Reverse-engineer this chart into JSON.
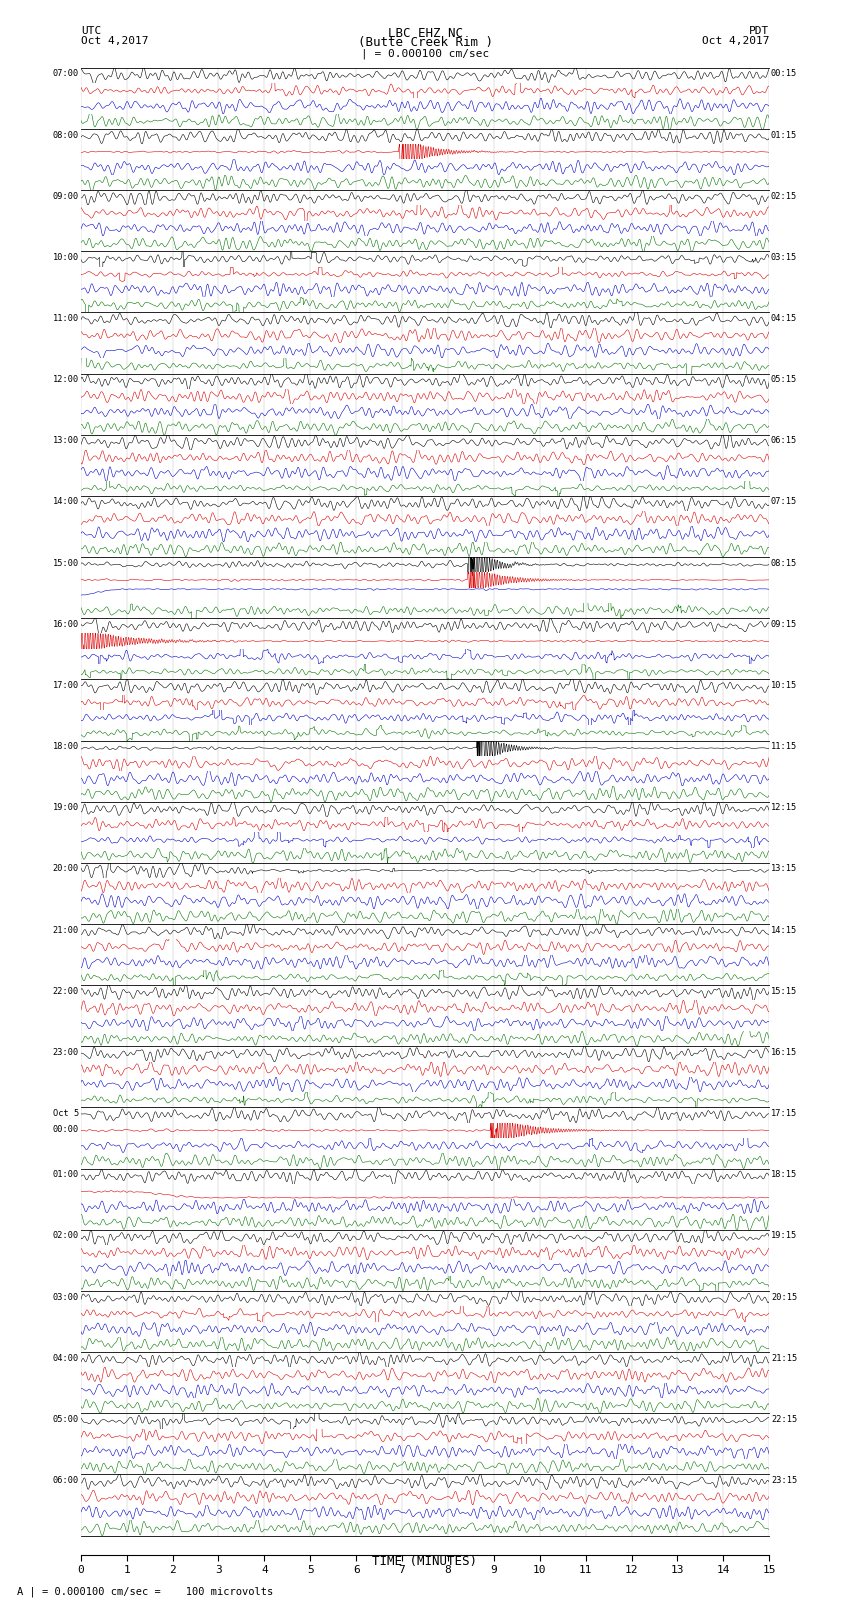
{
  "title_line1": "LBC EHZ NC",
  "title_line2": "(Butte Creek Rim )",
  "scale_text": "| = 0.000100 cm/sec",
  "utc_label": "UTC",
  "utc_date": "Oct 4,2017",
  "pdt_label": "PDT",
  "pdt_date": "Oct 4,2017",
  "xlabel": "TIME (MINUTES)",
  "footer_text": "A | = 0.000100 cm/sec =    100 microvolts",
  "left_times_utc": [
    "07:00",
    "08:00",
    "09:00",
    "10:00",
    "11:00",
    "12:00",
    "13:00",
    "14:00",
    "15:00",
    "16:00",
    "17:00",
    "18:00",
    "19:00",
    "20:00",
    "21:00",
    "22:00",
    "23:00",
    "Oct 5",
    "01:00",
    "02:00",
    "03:00",
    "04:00",
    "05:00",
    "06:00"
  ],
  "left_times_utc2": [
    "",
    "",
    "",
    "",
    "",
    "",
    "",
    "",
    "",
    "",
    "",
    "",
    "",
    "",
    "",
    "",
    "",
    "00:00",
    "",
    "",
    "",
    "",
    "",
    ""
  ],
  "right_times_pdt": [
    "00:15",
    "01:15",
    "02:15",
    "03:15",
    "04:15",
    "05:15",
    "06:15",
    "07:15",
    "08:15",
    "09:15",
    "10:15",
    "11:15",
    "12:15",
    "13:15",
    "14:15",
    "15:15",
    "16:15",
    "17:15",
    "18:15",
    "19:15",
    "20:15",
    "21:15",
    "22:15",
    "23:15"
  ],
  "num_rows": 24,
  "traces_per_row": 4,
  "bg_color": "#ffffff",
  "grid_color": "#888888",
  "trace_color_black": "#000000",
  "trace_color_red": "#dd0000",
  "trace_color_blue": "#0000cc",
  "trace_color_green": "#007700",
  "xmin": 0,
  "xmax": 15,
  "xticks": [
    0,
    1,
    2,
    3,
    4,
    5,
    6,
    7,
    8,
    9,
    10,
    11,
    12,
    13,
    14,
    15
  ],
  "figwidth": 8.5,
  "figheight": 16.13,
  "dpi": 100
}
